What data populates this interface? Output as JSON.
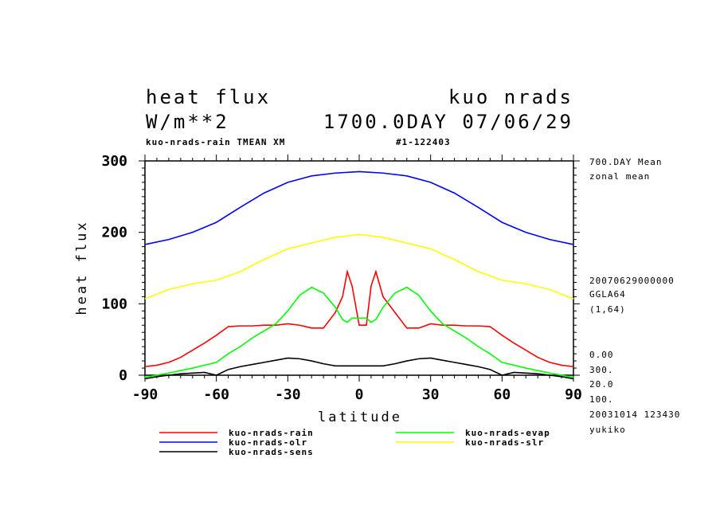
{
  "chart_data": {
    "type": "line",
    "title": [
      "heat flux",
      "W/m**2"
    ],
    "title_right": [
      "kuo nrads",
      "1700.0DAY 07/06/29"
    ],
    "subtitle_left": "kuo-nrads-rain TMEAN XM",
    "subtitle_right": "#1-122403",
    "xlabel": "latitude",
    "ylabel": "heat flux",
    "xlim": [
      -90,
      90
    ],
    "ylim": [
      0,
      300
    ],
    "xticks": [
      "-90",
      "-60",
      "-30",
      "0",
      "30",
      "60",
      "90"
    ],
    "yticks": [
      "0",
      "100",
      "200",
      "300"
    ],
    "side_text": [
      "700.DAY Mean",
      "zonal mean",
      "20070629000000",
      "GGLA64",
      "(1,64)",
      "0.00",
      "300.",
      "20.0",
      "100.",
      "20031014 123430",
      "yukiko"
    ],
    "series": [
      {
        "name": "kuo-nrads-rain",
        "color": "#ff0000",
        "x": [
          -90,
          -85,
          -80,
          -75,
          -70,
          -65,
          -60,
          -55,
          -50,
          -45,
          -40,
          -35,
          -30,
          -25,
          -20,
          -15,
          -10,
          -7,
          -5,
          -3,
          0,
          3,
          5,
          7,
          10,
          15,
          20,
          25,
          30,
          35,
          40,
          45,
          50,
          55,
          60,
          65,
          70,
          75,
          80,
          85,
          90
        ],
        "y": [
          12,
          14,
          18,
          25,
          35,
          45,
          56,
          68,
          69,
          69,
          70,
          70,
          72,
          70,
          66,
          66,
          88,
          110,
          145,
          125,
          70,
          70,
          125,
          145,
          110,
          88,
          66,
          66,
          72,
          70,
          70,
          69,
          69,
          68,
          56,
          45,
          35,
          25,
          18,
          14,
          12
        ]
      },
      {
        "name": "kuo-nrads-olr",
        "color": "#0000ff",
        "x": [
          -90,
          -80,
          -70,
          -60,
          -50,
          -40,
          -30,
          -20,
          -10,
          0,
          10,
          20,
          30,
          40,
          50,
          60,
          70,
          80,
          90
        ],
        "y": [
          183,
          190,
          200,
          214,
          235,
          255,
          270,
          279,
          283,
          285,
          283,
          279,
          270,
          255,
          235,
          214,
          200,
          190,
          183
        ]
      },
      {
        "name": "kuo-nrads-sens",
        "color": "#000000",
        "x": [
          -90,
          -85,
          -80,
          -75,
          -70,
          -65,
          -60,
          -55,
          -50,
          -45,
          -40,
          -35,
          -30,
          -25,
          -20,
          -15,
          -10,
          -5,
          0,
          5,
          10,
          15,
          20,
          25,
          30,
          35,
          40,
          45,
          50,
          55,
          60,
          65,
          70,
          75,
          80,
          85,
          90
        ],
        "y": [
          -5,
          -2,
          0,
          2,
          3,
          4,
          0,
          8,
          12,
          15,
          18,
          21,
          24,
          23,
          20,
          16,
          13,
          13,
          13,
          13,
          13,
          16,
          20,
          23,
          24,
          21,
          18,
          15,
          12,
          8,
          0,
          4,
          3,
          2,
          0,
          -2,
          -5
        ]
      },
      {
        "name": "kuo-nrads-evap",
        "color": "#00ff00",
        "x": [
          -90,
          -80,
          -70,
          -60,
          -55,
          -50,
          -45,
          -40,
          -35,
          -30,
          -25,
          -20,
          -15,
          -10,
          -7,
          -5,
          -3,
          0,
          3,
          5,
          7,
          10,
          15,
          20,
          25,
          30,
          35,
          40,
          45,
          50,
          55,
          60,
          70,
          80,
          90
        ],
        "y": [
          -3,
          3,
          10,
          18,
          30,
          40,
          52,
          62,
          72,
          90,
          112,
          123,
          115,
          95,
          78,
          74,
          80,
          80,
          80,
          74,
          78,
          95,
          115,
          123,
          112,
          90,
          72,
          62,
          52,
          40,
          30,
          18,
          10,
          3,
          -3
        ]
      },
      {
        "name": "kuo-nrads-slr",
        "color": "#ffff00",
        "x": [
          -90,
          -80,
          -70,
          -60,
          -50,
          -40,
          -30,
          -20,
          -10,
          0,
          10,
          20,
          30,
          40,
          50,
          60,
          70,
          80,
          90
        ],
        "y": [
          107,
          120,
          128,
          133,
          145,
          162,
          177,
          185,
          193,
          197,
          193,
          185,
          177,
          162,
          145,
          133,
          128,
          120,
          107
        ]
      }
    ],
    "legend": "bottom"
  }
}
